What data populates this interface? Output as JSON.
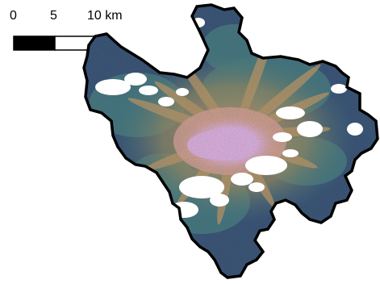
{
  "scale_bar": {
    "ticks": [
      {
        "value": 0,
        "label": "0"
      },
      {
        "value": 5,
        "label": "5"
      },
      {
        "value": 10,
        "label": "10 km"
      }
    ],
    "unit": "km",
    "segment_colors": [
      "#000000",
      "#ffffff"
    ]
  },
  "map": {
    "boundary_color": "#000000",
    "palette": {
      "low": "#2f4a6b",
      "mid_low": "#3f7a78",
      "mid": "#8a8a55",
      "mid_high": "#c79a5a",
      "high": "#e8a58e",
      "peak": "#f2b8e8",
      "no_data": "#ffffff"
    }
  }
}
